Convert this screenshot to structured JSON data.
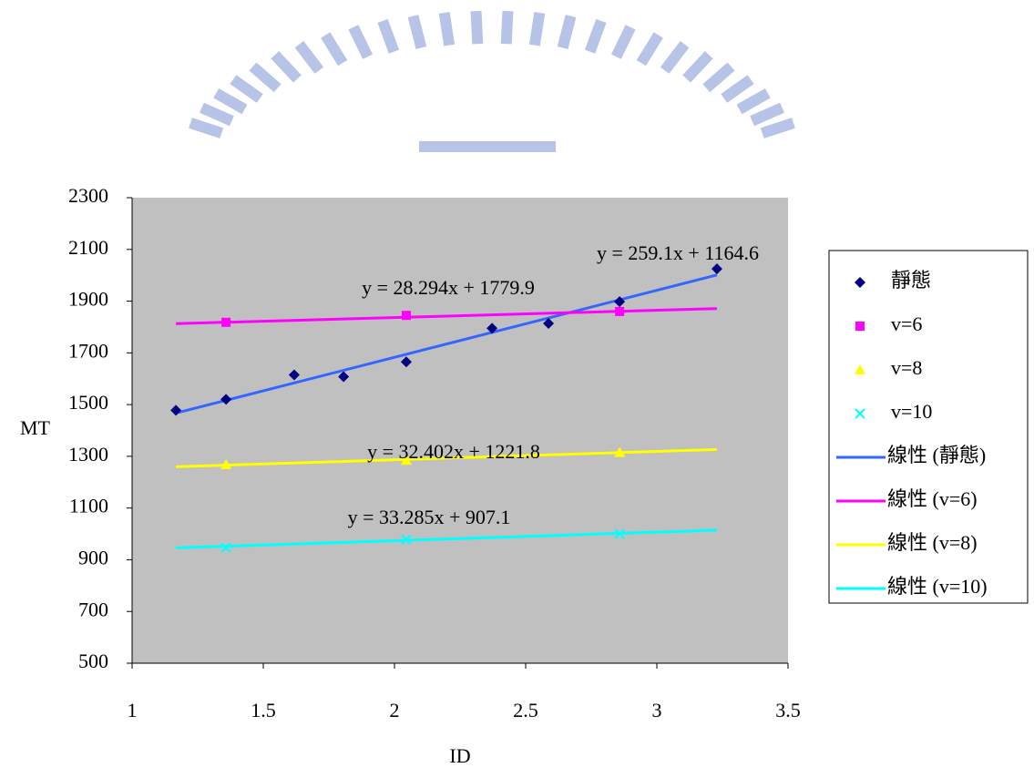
{
  "chart_data": {
    "type": "scatter",
    "x_label": "ID",
    "y_label": "MT",
    "xlim": [
      1,
      3.5
    ],
    "xticks": [
      1,
      1.5,
      2,
      2.5,
      3,
      3.5
    ],
    "ylim": [
      500,
      2300
    ],
    "yticks": [
      500,
      700,
      900,
      1100,
      1300,
      1500,
      1700,
      1900,
      2100,
      2300
    ],
    "plot_background": "#c0c0c0",
    "series": [
      {
        "name": "靜態",
        "color": "#000080",
        "marker": "diamond",
        "x": [
          1.167,
          1.358,
          1.618,
          1.806,
          2.045,
          2.372,
          2.587,
          2.858,
          3.229
        ],
        "values": [
          1478,
          1520,
          1615,
          1608,
          1665,
          1795,
          1814,
          1898,
          2025
        ]
      },
      {
        "name": "v=6",
        "color": "#ff00ff",
        "marker": "square",
        "x": [
          1.358,
          2.045,
          2.858
        ],
        "values": [
          1818,
          1845,
          1860
        ]
      },
      {
        "name": "v=8",
        "color": "#ffff00",
        "marker": "triangle",
        "x": [
          1.358,
          2.045,
          2.858
        ],
        "values": [
          1268,
          1285,
          1315
        ]
      },
      {
        "name": "v=10",
        "color": "#00ffff",
        "marker": "cross",
        "x": [
          1.358,
          2.045,
          2.858
        ],
        "values": [
          947,
          978,
          1000
        ]
      }
    ],
    "trendlines": [
      {
        "name": "線性 (靜態)",
        "color": "#3366ff",
        "x": [
          1.167,
          3.229
        ],
        "values": [
          1467,
          2001.2
        ],
        "equation": "y = 259.1x + 1164.6"
      },
      {
        "name": "線性 (v=6)",
        "color": "#ff00ff",
        "x": [
          1.167,
          3.229
        ],
        "values": [
          1812.9,
          1871.3
        ],
        "equation": "y = 28.294x + 1779.9"
      },
      {
        "name": "線性 (v=8)",
        "color": "#ffff00",
        "x": [
          1.167,
          3.229
        ],
        "values": [
          1259.6,
          1326.4
        ],
        "equation": "y = 32.402x + 1221.8"
      },
      {
        "name": "線性 (v=10)",
        "color": "#00ffff",
        "x": [
          1.167,
          3.229
        ],
        "values": [
          945.9,
          1014.6
        ],
        "equation": "y = 33.285x + 907.1"
      }
    ],
    "legend": "right"
  }
}
